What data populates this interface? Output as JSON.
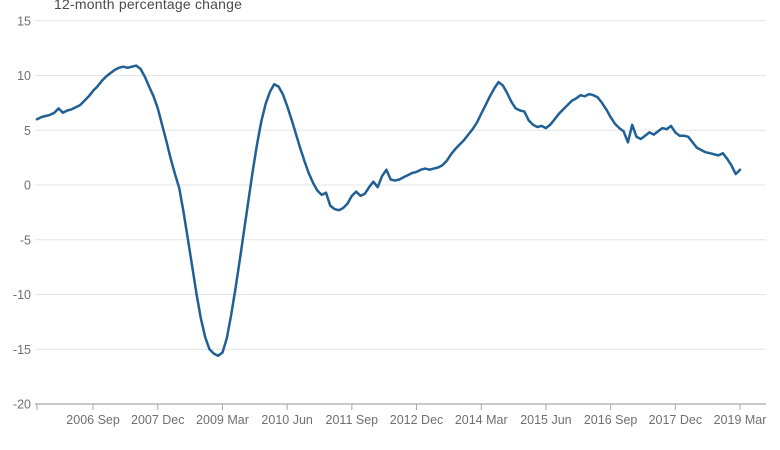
{
  "chart": {
    "title": "12-month percentage change"
  },
  "chart_data": {
    "type": "line",
    "title": "12-month percentage change",
    "xlabel": "",
    "ylabel": "",
    "ylim": [
      -20,
      15
    ],
    "grid": "horizontal",
    "legend_position": "none",
    "line_color": "#206095",
    "grid_color": "#e4e4e4",
    "axis_color": "#a6a6a6",
    "tick_text_color": "#6f6f73",
    "yticks": [
      15,
      10,
      5,
      0,
      -5,
      -10,
      -15,
      -20
    ],
    "xtick_labels": [
      "2006 Sep",
      "2007 Dec",
      "2009 Mar",
      "2010 Jun",
      "2011 Sep",
      "2012 Dec",
      "2014 Mar",
      "2015 Jun",
      "2016 Sep",
      "2017 Dec",
      "2019 Mar"
    ],
    "xtick_indices": [
      13,
      28,
      43,
      58,
      73,
      88,
      103,
      118,
      133,
      148,
      163
    ],
    "categories": [
      "2005 Aug",
      "2005 Sep",
      "2005 Oct",
      "2005 Nov",
      "2005 Dec",
      "2006 Jan",
      "2006 Feb",
      "2006 Mar",
      "2006 Apr",
      "2006 May",
      "2006 Jun",
      "2006 Jul",
      "2006 Aug",
      "2006 Sep",
      "2006 Oct",
      "2006 Nov",
      "2006 Dec",
      "2007 Jan",
      "2007 Feb",
      "2007 Mar",
      "2007 Apr",
      "2007 May",
      "2007 Jun",
      "2007 Jul",
      "2007 Aug",
      "2007 Sep",
      "2007 Oct",
      "2007 Nov",
      "2007 Dec",
      "2008 Jan",
      "2008 Feb",
      "2008 Mar",
      "2008 Apr",
      "2008 May",
      "2008 Jun",
      "2008 Jul",
      "2008 Aug",
      "2008 Sep",
      "2008 Oct",
      "2008 Nov",
      "2008 Dec",
      "2009 Jan",
      "2009 Feb",
      "2009 Mar",
      "2009 Apr",
      "2009 May",
      "2009 Jun",
      "2009 Jul",
      "2009 Aug",
      "2009 Sep",
      "2009 Oct",
      "2009 Nov",
      "2009 Dec",
      "2010 Jan",
      "2010 Feb",
      "2010 Mar",
      "2010 Apr",
      "2010 May",
      "2010 Jun",
      "2010 Jul",
      "2010 Aug",
      "2010 Sep",
      "2010 Oct",
      "2010 Nov",
      "2010 Dec",
      "2011 Jan",
      "2011 Feb",
      "2011 Mar",
      "2011 Apr",
      "2011 May",
      "2011 Jun",
      "2011 Jul",
      "2011 Aug",
      "2011 Sep",
      "2011 Oct",
      "2011 Nov",
      "2011 Dec",
      "2012 Jan",
      "2012 Feb",
      "2012 Mar",
      "2012 Apr",
      "2012 May",
      "2012 Jun",
      "2012 Jul",
      "2012 Aug",
      "2012 Sep",
      "2012 Oct",
      "2012 Nov",
      "2012 Dec",
      "2013 Jan",
      "2013 Feb",
      "2013 Mar",
      "2013 Apr",
      "2013 May",
      "2013 Jun",
      "2013 Jul",
      "2013 Aug",
      "2013 Sep",
      "2013 Oct",
      "2013 Nov",
      "2013 Dec",
      "2014 Jan",
      "2014 Feb",
      "2014 Mar",
      "2014 Apr",
      "2014 May",
      "2014 Jun",
      "2014 Jul",
      "2014 Aug",
      "2014 Sep",
      "2014 Oct",
      "2014 Nov",
      "2014 Dec",
      "2015 Jan",
      "2015 Feb",
      "2015 Mar",
      "2015 Apr",
      "2015 May",
      "2015 Jun",
      "2015 Jul",
      "2015 Aug",
      "2015 Sep",
      "2015 Oct",
      "2015 Nov",
      "2015 Dec",
      "2016 Jan",
      "2016 Feb",
      "2016 Mar",
      "2016 Apr",
      "2016 May",
      "2016 Jun",
      "2016 Jul",
      "2016 Aug",
      "2016 Sep",
      "2016 Oct",
      "2016 Nov",
      "2016 Dec",
      "2017 Jan",
      "2017 Feb",
      "2017 Mar",
      "2017 Apr",
      "2017 May",
      "2017 Jun",
      "2017 Jul",
      "2017 Aug",
      "2017 Sep",
      "2017 Oct",
      "2017 Nov",
      "2017 Dec",
      "2018 Jan",
      "2018 Feb",
      "2018 Mar",
      "2018 Apr",
      "2018 May",
      "2018 Jun",
      "2018 Jul",
      "2018 Aug",
      "2018 Sep",
      "2018 Oct",
      "2018 Nov",
      "2018 Dec",
      "2019 Jan",
      "2019 Feb",
      "2019 Mar"
    ],
    "values": [
      6.0,
      6.2,
      6.3,
      6.4,
      6.6,
      7.0,
      6.6,
      6.8,
      6.9,
      7.1,
      7.3,
      7.7,
      8.1,
      8.6,
      9.0,
      9.5,
      9.9,
      10.2,
      10.5,
      10.7,
      10.8,
      10.7,
      10.8,
      10.9,
      10.6,
      9.9,
      9.0,
      8.1,
      7.0,
      5.5,
      4.0,
      2.4,
      1.0,
      -0.3,
      -2.5,
      -5.0,
      -7.5,
      -10.0,
      -12.2,
      -13.9,
      -15.0,
      -15.4,
      -15.6,
      -15.3,
      -14.0,
      -11.9,
      -9.5,
      -6.9,
      -4.2,
      -1.5,
      1.2,
      3.7,
      5.8,
      7.4,
      8.5,
      9.2,
      9.0,
      8.3,
      7.2,
      6.0,
      4.7,
      3.4,
      2.2,
      1.1,
      0.2,
      -0.5,
      -0.9,
      -0.7,
      -1.9,
      -2.2,
      -2.3,
      -2.1,
      -1.7,
      -1.0,
      -0.6,
      -1.0,
      -0.8,
      -0.2,
      0.3,
      -0.2,
      0.8,
      1.4,
      0.5,
      0.4,
      0.5,
      0.7,
      0.9,
      1.1,
      1.2,
      1.4,
      1.5,
      1.4,
      1.5,
      1.6,
      1.8,
      2.2,
      2.8,
      3.3,
      3.7,
      4.1,
      4.6,
      5.1,
      5.7,
      6.5,
      7.3,
      8.1,
      8.8,
      9.4,
      9.1,
      8.4,
      7.6,
      7.0,
      6.8,
      6.7,
      5.9,
      5.5,
      5.3,
      5.4,
      5.2,
      5.5,
      6.0,
      6.5,
      6.9,
      7.3,
      7.7,
      7.9,
      8.2,
      8.1,
      8.3,
      8.2,
      8.0,
      7.5,
      6.9,
      6.2,
      5.6,
      5.2,
      4.9,
      3.9,
      5.5,
      4.4,
      4.2,
      4.5,
      4.8,
      4.6,
      4.9,
      5.2,
      5.1,
      5.4,
      4.8,
      4.5,
      4.5,
      4.4,
      3.9,
      3.4,
      3.2,
      3.0,
      2.9,
      2.8,
      2.7,
      2.9,
      2.4,
      1.8,
      1.0,
      1.4
    ]
  }
}
